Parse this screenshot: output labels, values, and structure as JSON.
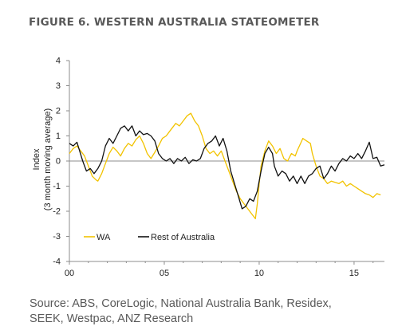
{
  "figure": {
    "title": "FIGURE 6. WESTERN AUSTRALIA STATEOMETER",
    "source_line1": "Source: ABS, CoreLogic, National Australia Bank, Residex,",
    "source_line2": "SEEK, Westpac, ANZ Research"
  },
  "chart_data": {
    "type": "line",
    "ylabel_line1": "Index",
    "ylabel_line2": "(3 month moving average)",
    "xlabel": "",
    "ylim": [
      -4,
      4
    ],
    "yticks": [
      4,
      3,
      2,
      1,
      0,
      -1,
      -2,
      -3,
      -4
    ],
    "xlim": [
      0,
      16.6
    ],
    "xticks": [
      {
        "v": 0,
        "label": "00"
      },
      {
        "v": 5,
        "label": "05"
      },
      {
        "v": 10,
        "label": "10"
      },
      {
        "v": 15,
        "label": "15"
      }
    ],
    "grid": false,
    "zero_line": true,
    "legend_position": "bottom-left",
    "series": [
      {
        "name": "WA",
        "color": "#f2c300",
        "points": [
          [
            0.0,
            0.3
          ],
          [
            0.2,
            0.5
          ],
          [
            0.4,
            0.6
          ],
          [
            0.6,
            0.4
          ],
          [
            0.8,
            0.2
          ],
          [
            1.0,
            -0.2
          ],
          [
            1.2,
            -0.6
          ],
          [
            1.4,
            -0.75
          ],
          [
            1.5,
            -0.8
          ],
          [
            1.7,
            -0.5
          ],
          [
            1.9,
            -0.1
          ],
          [
            2.1,
            0.3
          ],
          [
            2.3,
            0.55
          ],
          [
            2.5,
            0.4
          ],
          [
            2.7,
            0.2
          ],
          [
            2.9,
            0.5
          ],
          [
            3.1,
            0.7
          ],
          [
            3.3,
            0.6
          ],
          [
            3.5,
            0.85
          ],
          [
            3.7,
            1.0
          ],
          [
            3.9,
            0.7
          ],
          [
            4.1,
            0.3
          ],
          [
            4.3,
            0.1
          ],
          [
            4.5,
            0.35
          ],
          [
            4.7,
            0.6
          ],
          [
            4.9,
            0.9
          ],
          [
            5.1,
            1.0
          ],
          [
            5.3,
            1.2
          ],
          [
            5.6,
            1.5
          ],
          [
            5.8,
            1.4
          ],
          [
            6.0,
            1.6
          ],
          [
            6.2,
            1.8
          ],
          [
            6.4,
            1.9
          ],
          [
            6.6,
            1.6
          ],
          [
            6.8,
            1.4
          ],
          [
            7.0,
            1.0
          ],
          [
            7.2,
            0.5
          ],
          [
            7.4,
            0.3
          ],
          [
            7.6,
            0.4
          ],
          [
            7.8,
            0.2
          ],
          [
            8.0,
            0.4
          ],
          [
            8.2,
            0.0
          ],
          [
            8.4,
            -0.4
          ],
          [
            8.6,
            -0.8
          ],
          [
            8.8,
            -1.2
          ],
          [
            9.0,
            -1.5
          ],
          [
            9.2,
            -1.7
          ],
          [
            9.4,
            -1.9
          ],
          [
            9.6,
            -2.1
          ],
          [
            9.8,
            -2.3
          ],
          [
            9.9,
            -1.7
          ],
          [
            10.0,
            -0.9
          ],
          [
            10.1,
            -0.2
          ],
          [
            10.3,
            0.4
          ],
          [
            10.5,
            0.8
          ],
          [
            10.7,
            0.6
          ],
          [
            10.9,
            0.3
          ],
          [
            11.1,
            0.5
          ],
          [
            11.3,
            0.1
          ],
          [
            11.5,
            0.0
          ],
          [
            11.7,
            0.3
          ],
          [
            11.9,
            0.2
          ],
          [
            12.0,
            0.4
          ],
          [
            12.3,
            0.9
          ],
          [
            12.5,
            0.8
          ],
          [
            12.7,
            0.7
          ],
          [
            12.8,
            0.3
          ],
          [
            13.0,
            -0.2
          ],
          [
            13.2,
            -0.6
          ],
          [
            13.4,
            -0.7
          ],
          [
            13.6,
            -0.9
          ],
          [
            13.8,
            -0.8
          ],
          [
            14.0,
            -0.85
          ],
          [
            14.2,
            -0.9
          ],
          [
            14.4,
            -0.8
          ],
          [
            14.6,
            -1.0
          ],
          [
            14.8,
            -0.9
          ],
          [
            15.0,
            -1.0
          ],
          [
            15.2,
            -1.1
          ],
          [
            15.4,
            -1.2
          ],
          [
            15.6,
            -1.3
          ],
          [
            15.8,
            -1.35
          ],
          [
            16.0,
            -1.45
          ],
          [
            16.2,
            -1.3
          ],
          [
            16.4,
            -1.35
          ]
        ]
      },
      {
        "name": "Rest of Australia",
        "color": "#111111",
        "points": [
          [
            0.0,
            0.7
          ],
          [
            0.2,
            0.6
          ],
          [
            0.4,
            0.75
          ],
          [
            0.5,
            0.5
          ],
          [
            0.7,
            0.0
          ],
          [
            0.9,
            -0.4
          ],
          [
            1.1,
            -0.3
          ],
          [
            1.3,
            -0.5
          ],
          [
            1.5,
            -0.3
          ],
          [
            1.7,
            0.0
          ],
          [
            1.9,
            0.6
          ],
          [
            2.1,
            0.9
          ],
          [
            2.3,
            0.7
          ],
          [
            2.5,
            1.0
          ],
          [
            2.7,
            1.3
          ],
          [
            2.9,
            1.4
          ],
          [
            3.1,
            1.2
          ],
          [
            3.3,
            1.4
          ],
          [
            3.5,
            1.0
          ],
          [
            3.7,
            1.2
          ],
          [
            3.9,
            1.05
          ],
          [
            4.1,
            1.1
          ],
          [
            4.3,
            1.0
          ],
          [
            4.5,
            0.8
          ],
          [
            4.7,
            0.3
          ],
          [
            4.9,
            0.1
          ],
          [
            5.1,
            0.0
          ],
          [
            5.3,
            0.1
          ],
          [
            5.5,
            -0.1
          ],
          [
            5.7,
            0.1
          ],
          [
            5.9,
            0.0
          ],
          [
            6.1,
            0.15
          ],
          [
            6.3,
            -0.1
          ],
          [
            6.5,
            0.05
          ],
          [
            6.7,
            0.0
          ],
          [
            6.9,
            0.1
          ],
          [
            7.1,
            0.5
          ],
          [
            7.3,
            0.7
          ],
          [
            7.5,
            0.8
          ],
          [
            7.7,
            1.0
          ],
          [
            7.9,
            0.6
          ],
          [
            8.1,
            0.9
          ],
          [
            8.3,
            0.4
          ],
          [
            8.5,
            -0.4
          ],
          [
            8.7,
            -0.9
          ],
          [
            8.9,
            -1.4
          ],
          [
            9.1,
            -1.9
          ],
          [
            9.3,
            -1.8
          ],
          [
            9.5,
            -1.5
          ],
          [
            9.7,
            -1.6
          ],
          [
            9.9,
            -1.2
          ],
          [
            10.1,
            -0.4
          ],
          [
            10.3,
            0.3
          ],
          [
            10.5,
            0.55
          ],
          [
            10.7,
            0.3
          ],
          [
            10.8,
            -0.2
          ],
          [
            11.0,
            -0.6
          ],
          [
            11.2,
            -0.4
          ],
          [
            11.4,
            -0.5
          ],
          [
            11.6,
            -0.8
          ],
          [
            11.8,
            -0.6
          ],
          [
            12.0,
            -0.9
          ],
          [
            12.2,
            -0.6
          ],
          [
            12.4,
            -0.9
          ],
          [
            12.6,
            -0.6
          ],
          [
            12.8,
            -0.5
          ],
          [
            13.0,
            -0.3
          ],
          [
            13.2,
            -0.2
          ],
          [
            13.4,
            -0.7
          ],
          [
            13.6,
            -0.5
          ],
          [
            13.8,
            -0.2
          ],
          [
            14.0,
            -0.4
          ],
          [
            14.2,
            -0.1
          ],
          [
            14.4,
            0.1
          ],
          [
            14.6,
            0.0
          ],
          [
            14.8,
            0.2
          ],
          [
            15.0,
            0.1
          ],
          [
            15.2,
            0.3
          ],
          [
            15.4,
            0.1
          ],
          [
            15.6,
            0.4
          ],
          [
            15.8,
            0.75
          ],
          [
            16.0,
            0.1
          ],
          [
            16.2,
            0.15
          ],
          [
            16.4,
            -0.2
          ],
          [
            16.6,
            -0.15
          ]
        ]
      }
    ]
  }
}
